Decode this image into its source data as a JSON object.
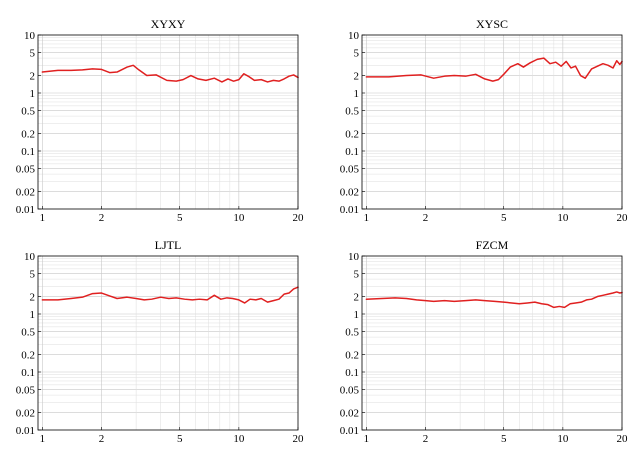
{
  "chart_data": [
    {
      "type": "line",
      "title": "XYXY",
      "xscale": "log",
      "yscale": "log",
      "xlim": [
        0.95,
        20
      ],
      "ylim": [
        0.01,
        10
      ],
      "xticks": [
        "1",
        "2",
        "5",
        "10",
        "20"
      ],
      "yticks": [
        "0.01",
        "0.02",
        "0.05",
        "0.1",
        "0.2",
        "0.5",
        "1",
        "2",
        "5",
        "10"
      ],
      "grid": true,
      "series": [
        {
          "color": "#e02020",
          "x": [
            1,
            1.2,
            1.4,
            1.6,
            1.8,
            2.0,
            2.2,
            2.4,
            2.7,
            2.9,
            3.1,
            3.4,
            3.8,
            4.3,
            4.8,
            5.2,
            5.7,
            6.2,
            6.8,
            7.5,
            8.2,
            8.8,
            9.4,
            10,
            10.6,
            11.3,
            12,
            13,
            14,
            15,
            16,
            17,
            18,
            19,
            20
          ],
          "values": [
            2.3,
            2.45,
            2.45,
            2.5,
            2.6,
            2.55,
            2.25,
            2.3,
            2.8,
            3.0,
            2.5,
            2.0,
            2.05,
            1.65,
            1.6,
            1.7,
            2.0,
            1.75,
            1.65,
            1.8,
            1.55,
            1.75,
            1.6,
            1.7,
            2.15,
            1.9,
            1.65,
            1.7,
            1.55,
            1.65,
            1.6,
            1.75,
            1.95,
            2.05,
            1.85
          ]
        }
      ]
    },
    {
      "type": "line",
      "title": "XYSC",
      "xscale": "log",
      "yscale": "log",
      "xlim": [
        0.95,
        20
      ],
      "ylim": [
        0.01,
        10
      ],
      "xticks": [
        "1",
        "2",
        "5",
        "10",
        "20"
      ],
      "yticks": [
        "0.01",
        "0.02",
        "0.05",
        "0.1",
        "0.2",
        "0.5",
        "1",
        "2",
        "5",
        "10"
      ],
      "grid": true,
      "series": [
        {
          "color": "#e02020",
          "x": [
            1,
            1.3,
            1.6,
            1.9,
            2.2,
            2.5,
            2.8,
            3.2,
            3.6,
            4.0,
            4.4,
            4.7,
            5.0,
            5.4,
            5.9,
            6.3,
            6.8,
            7.4,
            8.0,
            8.6,
            9.2,
            9.8,
            10.4,
            11,
            11.6,
            12.3,
            13,
            14,
            15,
            16,
            17,
            18,
            18.8,
            19.5,
            20
          ],
          "values": [
            1.9,
            1.9,
            2.0,
            2.05,
            1.8,
            1.95,
            2.0,
            1.95,
            2.1,
            1.75,
            1.6,
            1.7,
            2.1,
            2.8,
            3.2,
            2.8,
            3.3,
            3.8,
            4.0,
            3.2,
            3.4,
            2.9,
            3.5,
            2.7,
            2.9,
            2.0,
            1.8,
            2.6,
            2.9,
            3.2,
            3.0,
            2.7,
            3.6,
            3.1,
            3.5
          ]
        }
      ]
    },
    {
      "type": "line",
      "title": "LJTL",
      "xscale": "log",
      "yscale": "log",
      "xlim": [
        0.95,
        20
      ],
      "ylim": [
        0.01,
        10
      ],
      "xticks": [
        "1",
        "2",
        "5",
        "10",
        "20"
      ],
      "yticks": [
        "0.01",
        "0.02",
        "0.05",
        "0.1",
        "0.2",
        "0.5",
        "1",
        "2",
        "5",
        "10"
      ],
      "grid": true,
      "series": [
        {
          "color": "#e02020",
          "x": [
            1,
            1.2,
            1.4,
            1.6,
            1.8,
            2.0,
            2.2,
            2.4,
            2.7,
            3.0,
            3.3,
            3.6,
            4.0,
            4.4,
            4.8,
            5.3,
            5.8,
            6.3,
            6.9,
            7.5,
            8.1,
            8.7,
            9.3,
            10,
            10.7,
            11.4,
            12.2,
            13,
            14,
            15,
            16,
            17,
            18,
            19,
            20
          ],
          "values": [
            1.75,
            1.75,
            1.85,
            1.95,
            2.25,
            2.3,
            2.05,
            1.85,
            1.95,
            1.85,
            1.75,
            1.8,
            1.95,
            1.85,
            1.9,
            1.8,
            1.75,
            1.8,
            1.75,
            2.1,
            1.8,
            1.9,
            1.85,
            1.75,
            1.55,
            1.8,
            1.75,
            1.85,
            1.6,
            1.7,
            1.8,
            2.2,
            2.3,
            2.7,
            2.9
          ]
        }
      ]
    },
    {
      "type": "line",
      "title": "FZCM",
      "xscale": "log",
      "yscale": "log",
      "xlim": [
        0.95,
        20
      ],
      "ylim": [
        0.01,
        10
      ],
      "xticks": [
        "1",
        "2",
        "5",
        "10",
        "20"
      ],
      "yticks": [
        "0.01",
        "0.02",
        "0.05",
        "0.1",
        "0.2",
        "0.5",
        "1",
        "2",
        "5",
        "10"
      ],
      "grid": true,
      "series": [
        {
          "color": "#e02020",
          "x": [
            1,
            1.2,
            1.4,
            1.6,
            1.8,
            2.0,
            2.2,
            2.5,
            2.8,
            3.2,
            3.6,
            4.0,
            4.5,
            5.0,
            5.5,
            6.0,
            6.6,
            7.2,
            7.8,
            8.4,
            9.0,
            9.6,
            10.2,
            10.9,
            11.6,
            12.4,
            13.2,
            14,
            15,
            16,
            17,
            18,
            18.8,
            19.5,
            20
          ],
          "values": [
            1.8,
            1.85,
            1.9,
            1.85,
            1.75,
            1.7,
            1.65,
            1.7,
            1.65,
            1.7,
            1.75,
            1.7,
            1.65,
            1.6,
            1.55,
            1.5,
            1.55,
            1.6,
            1.5,
            1.45,
            1.3,
            1.35,
            1.3,
            1.5,
            1.55,
            1.6,
            1.75,
            1.8,
            2.0,
            2.1,
            2.2,
            2.3,
            2.4,
            2.3,
            2.35
          ]
        }
      ]
    }
  ]
}
